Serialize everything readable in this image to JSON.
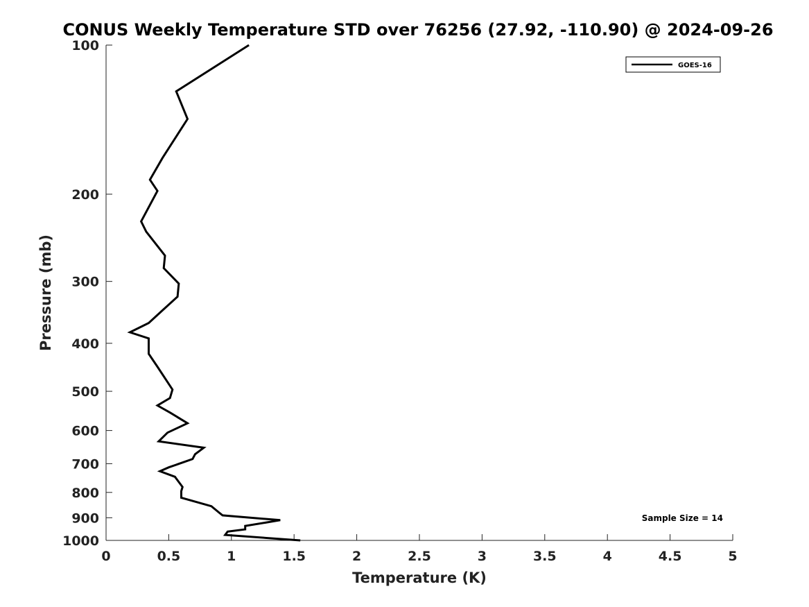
{
  "chart_data": {
    "type": "line",
    "title": "CONUS Weekly Temperature STD over 76256 (27.92, -110.90) @ 2024-09-26",
    "xlabel": "Temperature (K)",
    "ylabel": "Pressure (mb)",
    "xlim": [
      0,
      5
    ],
    "ylim": [
      100,
      1000
    ],
    "yscale": "log",
    "y_reversed": true,
    "grid": false,
    "legend_position": "top-right",
    "x_ticks": [
      "0",
      "0.5",
      "1",
      "1.5",
      "2",
      "2.5",
      "3",
      "3.5",
      "4",
      "4.5",
      "5"
    ],
    "y_ticks": [
      "100",
      "200",
      "300",
      "400",
      "500",
      "600",
      "700",
      "800",
      "900",
      "1000"
    ],
    "series": [
      {
        "name": "GOES-16",
        "color": "#000000",
        "x": [
          1.14,
          0.56,
          0.65,
          0.45,
          0.35,
          0.41,
          0.28,
          0.32,
          0.47,
          0.46,
          0.58,
          0.57,
          0.44,
          0.34,
          0.19,
          0.34,
          0.34,
          0.41,
          0.53,
          0.51,
          0.41,
          0.51,
          0.65,
          0.49,
          0.42,
          0.78,
          0.71,
          0.69,
          0.5,
          0.43,
          0.55,
          0.61,
          0.6,
          0.6,
          0.84,
          0.91,
          0.93,
          1.39,
          1.11,
          1.11,
          0.97,
          0.95,
          1.55
        ],
        "y": [
          100,
          124,
          141,
          169,
          187,
          197,
          227,
          238,
          266,
          282,
          303,
          322,
          345,
          364,
          380,
          391,
          420,
          446,
          496,
          516,
          534,
          552,
          580,
          606,
          631,
          650,
          670,
          685,
          712,
          725,
          744,
          780,
          795,
          820,
          853,
          882,
          890,
          910,
          935,
          950,
          960,
          975,
          1000
        ]
      }
    ],
    "annotations": [
      "Sample Size = 14"
    ]
  }
}
